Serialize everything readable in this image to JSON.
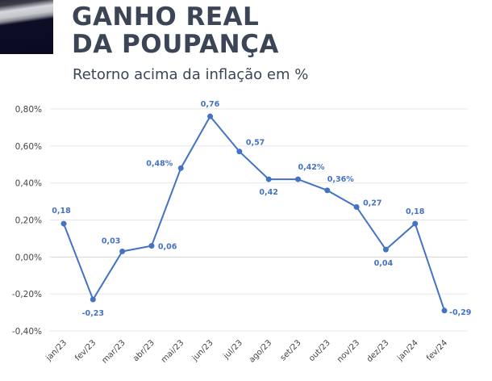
{
  "header": {
    "title_line1": "GANHO REAL",
    "title_line2": "DA POUPANÇA",
    "subtitle": "Retorno acima da inflação em %"
  },
  "colors": {
    "line": "#4472c4",
    "title": "#3c4555",
    "grid": "#e8e8e8"
  },
  "chart_data": {
    "type": "line",
    "title": "GANHO REAL DA POUPANÇA",
    "subtitle": "Retorno acima da inflação em %",
    "xlabel": "",
    "ylabel": "",
    "categories": [
      "jan/23",
      "fev/23",
      "mar/23",
      "abr/23",
      "mai/23",
      "jun/23",
      "jul/23",
      "ago/23",
      "set/23",
      "out/23",
      "nov/23",
      "dez/23",
      "jan/24",
      "fev/24"
    ],
    "series": [
      {
        "name": "Ganho real da poupança",
        "values": [
          0.18,
          -0.23,
          0.03,
          0.06,
          0.48,
          0.76,
          0.57,
          0.42,
          0.42,
          0.36,
          0.27,
          0.04,
          0.18,
          -0.29
        ]
      }
    ],
    "data_labels": [
      "0,18",
      "-0,23",
      "0,03",
      "0,06",
      "0,48%",
      "0,76",
      "0,57",
      "0,42",
      "0,42%",
      "0,36%",
      "0,27",
      "0,04",
      "0,18",
      "-0,29"
    ],
    "yticks": [
      "0,80%",
      "0,60%",
      "0,40%",
      "0,20%",
      "0,00%",
      "-0,20%",
      "-0,40%"
    ],
    "ytick_values": [
      0.8,
      0.6,
      0.4,
      0.2,
      0.0,
      -0.2,
      -0.4
    ],
    "ylim": [
      -0.4,
      0.8
    ],
    "grid": true,
    "legend": "none"
  }
}
